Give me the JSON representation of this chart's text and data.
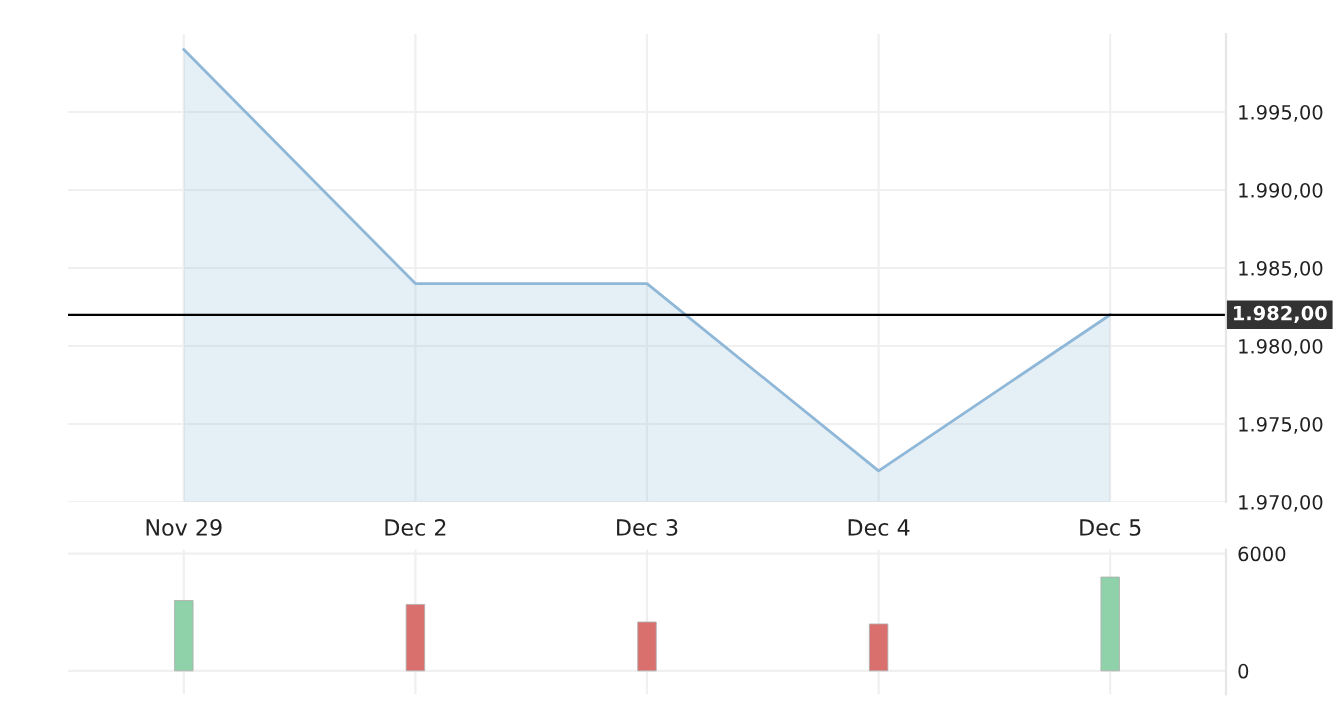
{
  "chart_data": [
    {
      "type": "area",
      "categories": [
        "Nov 29",
        "Dec 2",
        "Dec 3",
        "Dec 4",
        "Dec 5"
      ],
      "series": [
        {
          "color": "#8fb8d8",
          "values": [
            1999,
            1984,
            1984,
            1972,
            1982
          ]
        }
      ],
      "ylim": [
        1970,
        2000
      ],
      "yticks": [
        {
          "value": 1970,
          "label": "1.970,00"
        },
        {
          "value": 1975,
          "label": "1.975,00"
        },
        {
          "value": 1980,
          "label": "1.980,00"
        },
        {
          "value": 1985,
          "label": "1.985,00"
        },
        {
          "value": 1990,
          "label": "1.990,00"
        },
        {
          "value": 1995,
          "label": "1.995,00"
        }
      ],
      "ref_lines": [
        {
          "axis": "y",
          "value": 1982,
          "label": "1.982,00",
          "color": "#000000"
        }
      ],
      "grid": true,
      "legend": false
    },
    {
      "type": "bar",
      "categories": [
        null,
        null,
        null,
        null,
        null
      ],
      "values": [
        3600,
        3400,
        2500,
        2400,
        4800
      ],
      "colors": [
        "#8fd1a8",
        "#d9706e",
        "#d9706e",
        "#d9706e",
        "#8fd1a8"
      ],
      "ylim": [
        -1200,
        6200
      ],
      "yticks": [
        0,
        6000
      ],
      "tick_labels": "y",
      "grid": true,
      "legend": false
    }
  ]
}
